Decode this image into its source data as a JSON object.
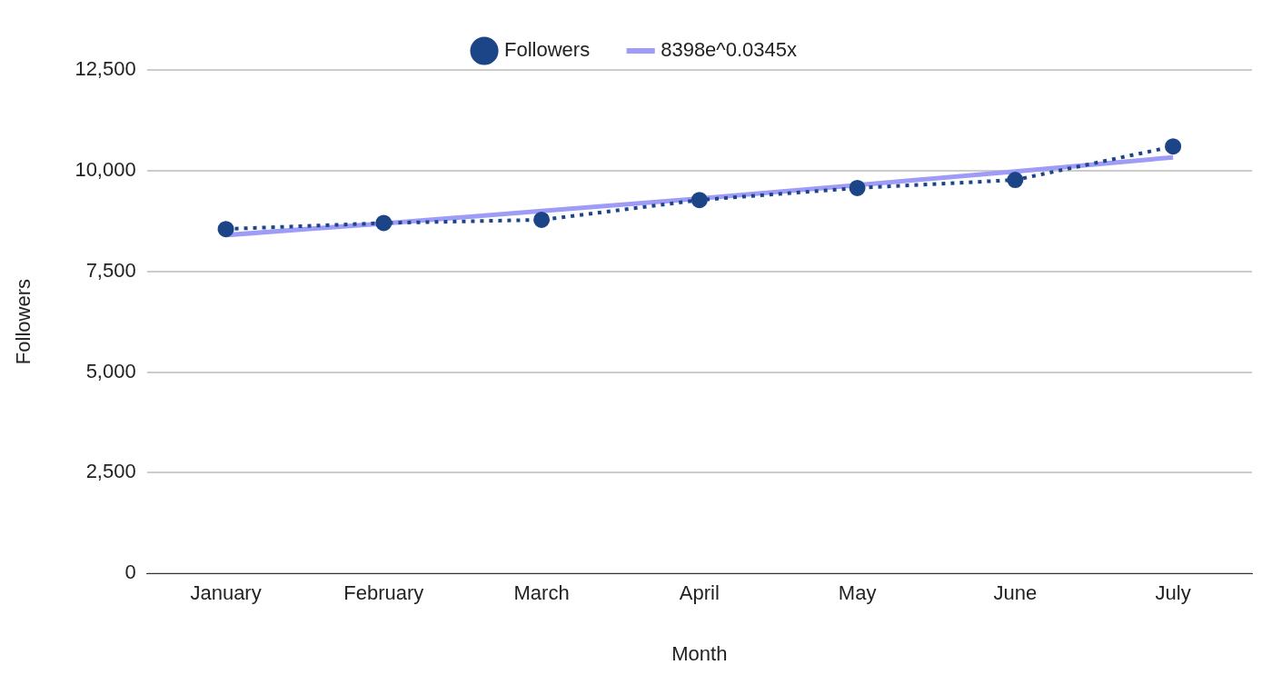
{
  "chart_data": {
    "type": "line",
    "xlabel": "Month",
    "ylabel": "Followers",
    "categories": [
      "January",
      "February",
      "March",
      "April",
      "May",
      "June",
      "July"
    ],
    "series": [
      {
        "name": "Followers",
        "color": "#1c4587",
        "values": [
          8550,
          8700,
          8780,
          9270,
          9570,
          9770,
          10600
        ],
        "marker": "circle",
        "line_style": "dotted"
      },
      {
        "name": "8398e^0.0345x",
        "color": "#9e9cf7",
        "type": "line",
        "values": [
          8400,
          8690,
          9000,
          9310,
          9640,
          9980,
          10330
        ],
        "marker": "none",
        "line_style": "solid"
      }
    ],
    "ylim": [
      0,
      12500
    ],
    "yticks": [
      0,
      {
        "value": 2500,
        "label": "2,500"
      },
      {
        "value": 5000,
        "label": "5,000"
      },
      {
        "value": 7500,
        "label": "7,500"
      },
      {
        "value": 10000,
        "label": "10,000"
      },
      {
        "value": 12500,
        "label": "12,500"
      }
    ],
    "grid": "y",
    "legend": "top"
  }
}
